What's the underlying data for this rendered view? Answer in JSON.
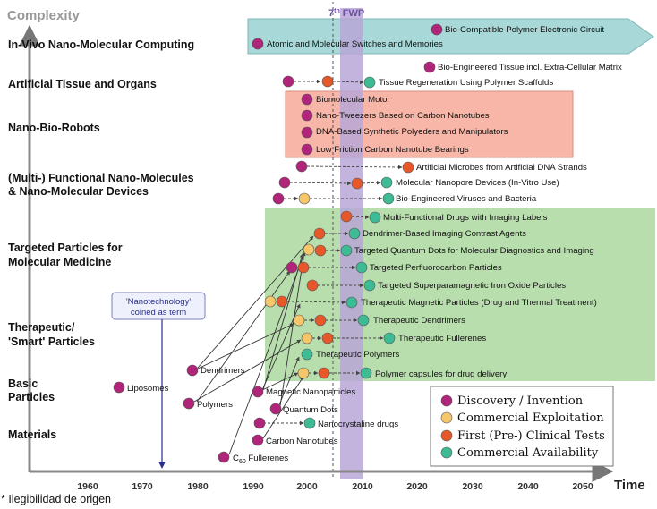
{
  "header": {
    "y_axis_label": "Complexity",
    "program_label": "7",
    "program_label_sup": "th",
    "program_label_rest": " FWP",
    "x_axis_label": "Time"
  },
  "years": [
    "1960",
    "1970",
    "1980",
    "1990",
    "2000",
    "2010",
    "2020",
    "2030",
    "2040",
    "2050"
  ],
  "categories": [
    "In-Vivo Nano-Molecular Computing",
    "Artificial Tissue and Organs",
    "Nano-Bio-Robots",
    "(Multi-) Functional Nano-Molecules",
    "& Nano-Molecular Devices",
    "Targeted Particles for",
    "Molecular Medicine",
    "Therapeutic/",
    "'Smart' Particles",
    "Basic",
    "Particles",
    "Materials"
  ],
  "callout": {
    "line1": "'Nanotechnology'",
    "line2": "coined as term"
  },
  "colors": {
    "discovery": "#b0247a",
    "commercial_exploitation": "#f5c76a",
    "clinical_tests": "#e6582a",
    "commercial_availability": "#3dbb94",
    "arrow_band": "#a8d8d8",
    "robots_band": "#f7b6a8",
    "green_band": "#b5dcaa",
    "fwp_band": "#b7a7d6"
  },
  "items": [
    {
      "label": "Bio-Compatible Polymer Electronic Circuit",
      "icon": "discovery-dot"
    },
    {
      "label": "Atomic and Molecular Switches and Memories",
      "icon": "discovery-dot"
    },
    {
      "label": "Bio-Engineered Tissue incl. Extra-Cellular Matrix",
      "icon": "discovery-dot"
    },
    {
      "label": "Tissue Regeneration Using Polymer Scaffolds",
      "icon": "availability-dot"
    },
    {
      "label": "Biomolecular Motor",
      "icon": "discovery-dot"
    },
    {
      "label": "Nano-Tweezers Based on Carbon Nanotubes",
      "icon": "discovery-dot"
    },
    {
      "label": "DNA-Based Synthetic Polyeders and Manipulators",
      "icon": "discovery-dot"
    },
    {
      "label": "Low Friction Carbon Nanotube Bearings",
      "icon": "discovery-dot"
    },
    {
      "label": "Artificial Microbes from Artificial DNA Strands",
      "icon": "clinical-dot"
    },
    {
      "label": "Molecular Nanopore Devices (In-Vitro Use)",
      "icon": "availability-dot"
    },
    {
      "label": "Bio-Engineered Viruses and Bacteria",
      "icon": "availability-dot"
    },
    {
      "label": "Multi-Functional Drugs with Imaging Labels",
      "icon": "availability-dot"
    },
    {
      "label": "Dendrimer-Based Imaging Contrast Agents",
      "icon": "availability-dot"
    },
    {
      "label": "Targeted Quantum Dots for Molecular Diagnostics and Imaging",
      "icon": "availability-dot"
    },
    {
      "label": "Targeted Perfluorocarbon Particles",
      "icon": "availability-dot"
    },
    {
      "label": "Targeted Superparamagnetic Iron Oxide Particles",
      "icon": "availability-dot"
    },
    {
      "label": "Therapeutic Magnetic Particles (Drug and Thermal Treatment)",
      "icon": "availability-dot"
    },
    {
      "label": "Therapeutic Dendrimers",
      "icon": "availability-dot"
    },
    {
      "label": "Therapeutic Fullerenes",
      "icon": "availability-dot"
    },
    {
      "label": "Therapeutic Polymers",
      "icon": "availability-dot"
    },
    {
      "label": "Polymer capsules for drug delivery",
      "icon": "availability-dot"
    },
    {
      "label": "Dendrimers",
      "icon": "discovery-dot"
    },
    {
      "label": "Liposomes",
      "icon": "discovery-dot"
    },
    {
      "label": "Polymers",
      "icon": "discovery-dot"
    },
    {
      "label": "Magnetic Nanoparticles",
      "icon": "discovery-dot"
    },
    {
      "label": "Quantum Dots",
      "icon": "discovery-dot"
    },
    {
      "label": "Nanocrystaline drugs",
      "icon": "availability-dot"
    },
    {
      "label": "Carbon Nanotubes",
      "icon": "discovery-dot"
    },
    {
      "label": "C",
      "sub": "60",
      "rest": " Fullerenes",
      "icon": "discovery-dot"
    }
  ],
  "legend": [
    {
      "label": "Discovery / Invention",
      "icon": "discovery-dot"
    },
    {
      "label": "Commercial Exploitation",
      "icon": "exploitation-dot"
    },
    {
      "label": "First (Pre-) Clinical Tests",
      "icon": "clinical-dot"
    },
    {
      "label": "Commercial Availability",
      "icon": "availability-dot"
    }
  ],
  "footnote": "* Ilegibilidad de origen"
}
